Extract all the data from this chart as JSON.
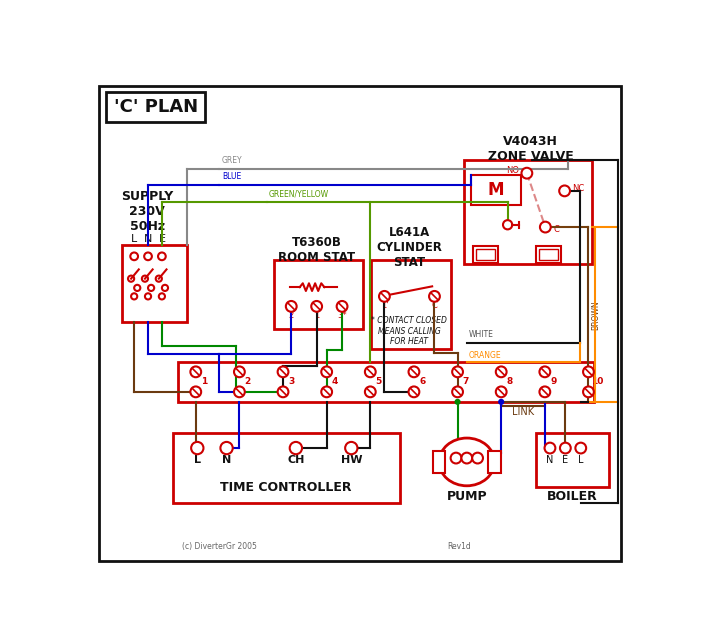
{
  "title": "'C' PLAN",
  "bg_color": "#ffffff",
  "red": "#cc0000",
  "blue": "#0000cc",
  "green": "#008800",
  "grey": "#888888",
  "brown": "#6B3A10",
  "orange": "#FF8C00",
  "black": "#111111",
  "pink": "#dd8888",
  "green_yellow": "#559900",
  "zone_valve_title": "V4043H\nZONE VALVE",
  "room_stat_title": "T6360B\nROOM STAT",
  "cyl_stat_title": "L641A\nCYLINDER\nSTAT",
  "supply_text": "SUPPLY\n230V\n50Hz",
  "time_ctrl_text": "TIME CONTROLLER",
  "pump_text": "PUMP",
  "boiler_text": "BOILER",
  "link_text": "LINK",
  "copyright": "(c) DiverterGr 2005",
  "revision": "Rev1d"
}
